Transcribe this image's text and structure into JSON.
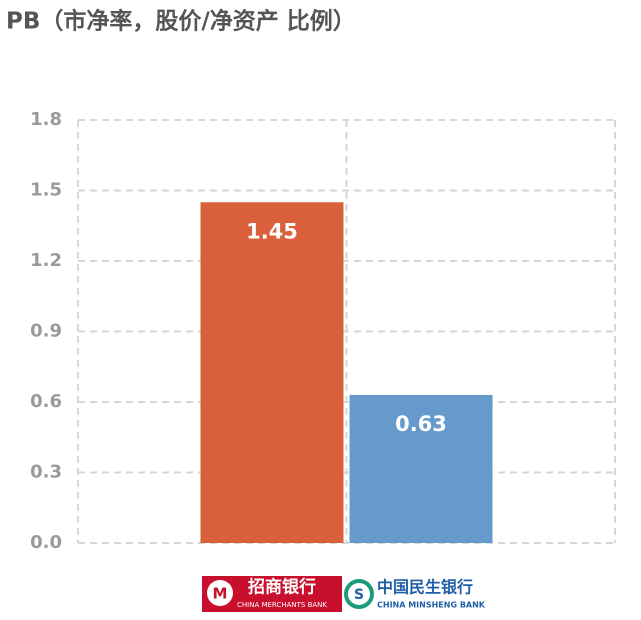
{
  "chart_data": {
    "type": "bar",
    "title": "PB（市净率，股价/净资产 比例）",
    "categories": [
      "招商银行",
      "中国民生银行"
    ],
    "category_subtitles": [
      "CHINA MERCHANTS BANK",
      "CHINA MINSHENG BANK"
    ],
    "values": [
      1.45,
      0.63
    ],
    "colors": [
      "#d9603b",
      "#6699cc"
    ],
    "ylim": [
      0,
      1.8
    ],
    "yticks": [
      {
        "value": 0,
        "label": "0.0"
      },
      0.3,
      0.6,
      0.9,
      1.2,
      1.5,
      1.8
    ],
    "grid": true
  }
}
